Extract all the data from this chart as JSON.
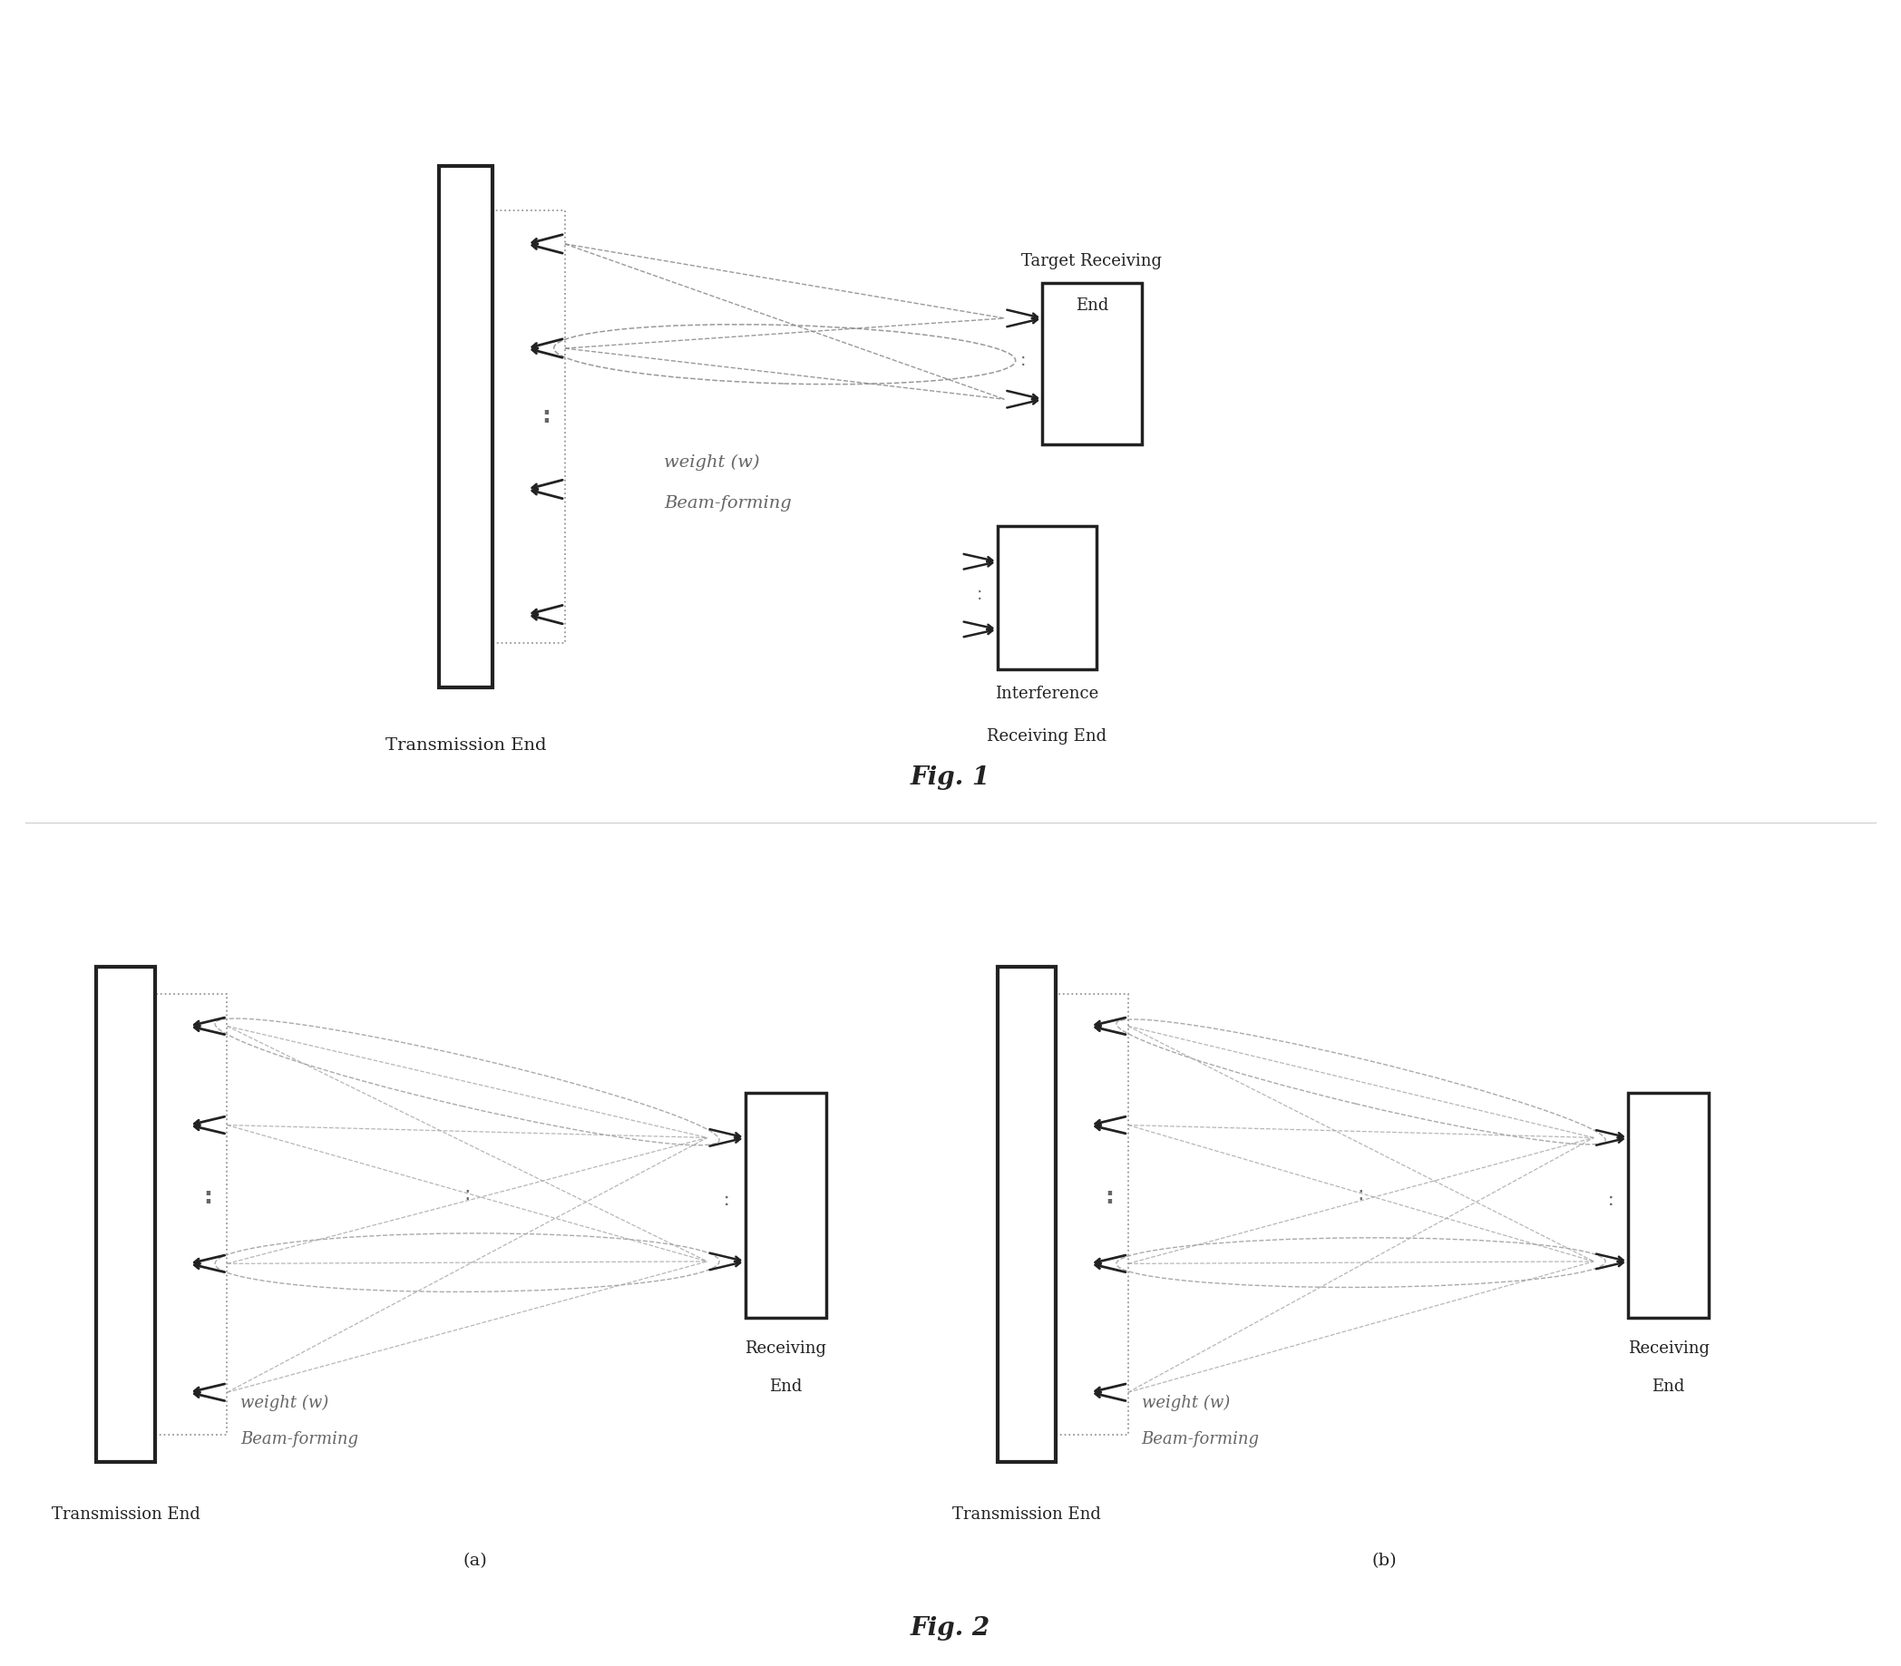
{
  "fig_width": 20.96,
  "fig_height": 18.37,
  "bg_color": "#ffffff",
  "dark_color": "#222222",
  "mid_color": "#666666",
  "light_color": "#aaaaaa",
  "fig1_label": "Fig. 1",
  "fig2_label": "Fig. 2",
  "label_a": "(a)",
  "label_b": "(b)",
  "tx_end_label": "Transmission End",
  "target_rx_label1": "Target Receiving",
  "target_rx_label2": "End",
  "interf_rx_label1": "Interference",
  "interf_rx_label2": "Receiving End",
  "rx_label1": "Receiving",
  "rx_label2": "End",
  "weight_label1": "weight (w)",
  "weight_label2": "Beam-forming"
}
